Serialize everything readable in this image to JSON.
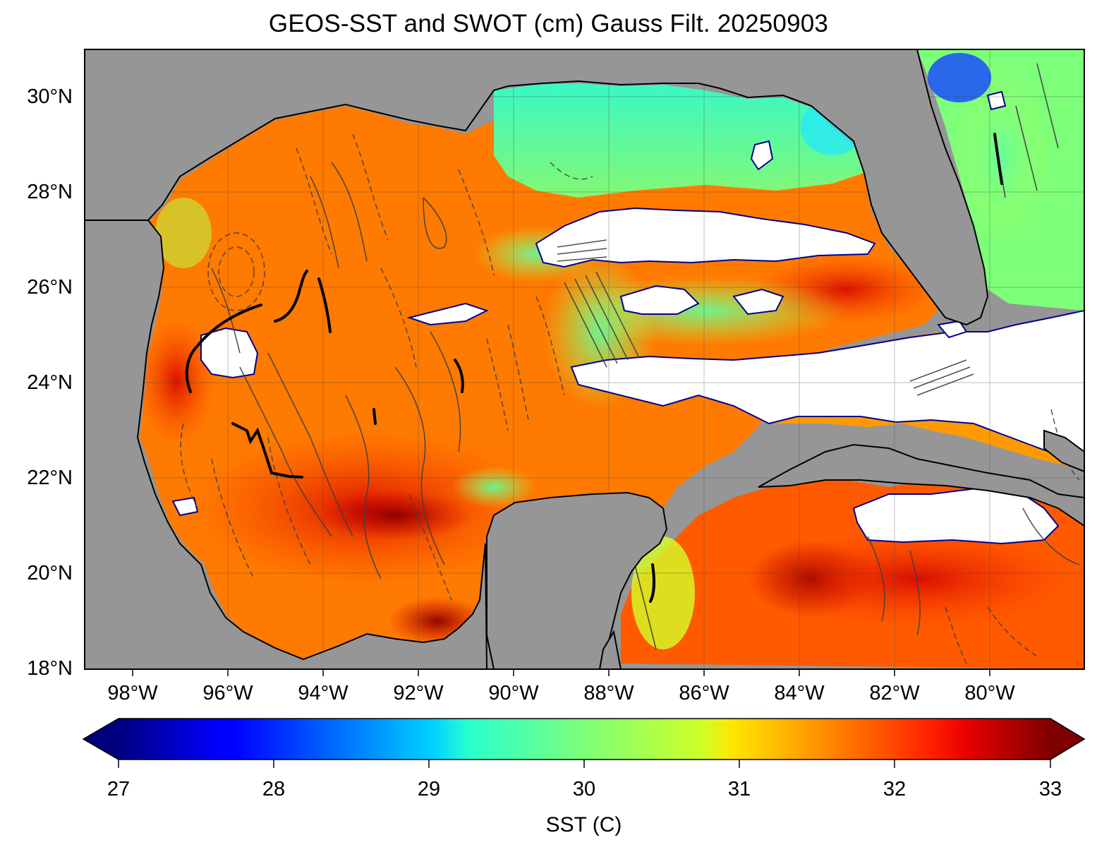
{
  "title": "GEOS-SST  and SWOT (cm) Gauss Filt. 20250903",
  "map": {
    "lon_range": [
      -99.2,
      -78.2
    ],
    "lat_range": [
      18,
      31
    ],
    "lat_ticks": [
      {
        "value": 30,
        "label": "30°N"
      },
      {
        "value": 28,
        "label": "28°N"
      },
      {
        "value": 26,
        "label": "26°N"
      },
      {
        "value": 24,
        "label": "24°N"
      },
      {
        "value": 22,
        "label": "22°N"
      },
      {
        "value": 20,
        "label": "20°N"
      },
      {
        "value": 18,
        "label": "18°N"
      }
    ],
    "lon_ticks": [
      {
        "value": -98,
        "label": "98°W"
      },
      {
        "value": -96,
        "label": "96°W"
      },
      {
        "value": -94,
        "label": "94°W"
      },
      {
        "value": -92,
        "label": "92°W"
      },
      {
        "value": -90,
        "label": "90°W"
      },
      {
        "value": -88,
        "label": "88°W"
      },
      {
        "value": -86,
        "label": "86°W"
      },
      {
        "value": -84,
        "label": "84°W"
      },
      {
        "value": -82,
        "label": "82°W"
      },
      {
        "value": -80,
        "label": "80°W"
      }
    ],
    "land_color": "#969696",
    "grid": true
  },
  "colorbar": {
    "title": "SST (C)",
    "min": 27,
    "max": 33,
    "ticks": [
      {
        "value": 27,
        "label": "27"
      },
      {
        "value": 28,
        "label": "28"
      },
      {
        "value": 29,
        "label": "29"
      },
      {
        "value": 30,
        "label": "30"
      },
      {
        "value": 31,
        "label": "31"
      },
      {
        "value": 32,
        "label": "32"
      },
      {
        "value": 33,
        "label": "33"
      }
    ],
    "extend": "both",
    "colormap": "jet"
  }
}
